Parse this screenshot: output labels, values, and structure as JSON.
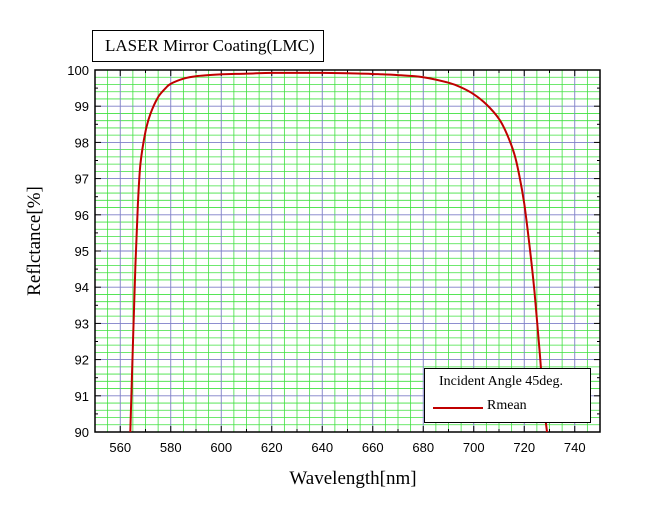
{
  "chart_data": {
    "type": "line",
    "title": "LASER Mirror Coating(LMC)",
    "xlabel": "Wavelength[nm]",
    "ylabel": "Reflctance[%]",
    "xlim": [
      550,
      750
    ],
    "ylim": [
      90,
      100
    ],
    "x_ticks": [
      560,
      580,
      600,
      620,
      640,
      660,
      680,
      700,
      720,
      740
    ],
    "y_ticks": [
      90,
      91,
      92,
      93,
      94,
      95,
      96,
      97,
      98,
      99,
      100
    ],
    "grid": true,
    "legend": {
      "title": "Incident Angle 45deg.",
      "position": "bottom-right"
    },
    "series": [
      {
        "name": "Rmean",
        "color": "#c00000",
        "x": [
          564,
          565,
          566,
          567,
          568,
          570,
          572,
          575,
          578,
          580,
          585,
          590,
          600,
          610,
          620,
          630,
          640,
          650,
          660,
          670,
          680,
          690,
          695,
          700,
          705,
          710,
          713,
          716,
          718,
          720,
          722,
          724,
          726,
          727,
          728,
          729
        ],
        "y": [
          90.0,
          92.4,
          94.6,
          96.3,
          97.4,
          98.3,
          98.8,
          99.25,
          99.5,
          99.62,
          99.76,
          99.83,
          99.88,
          99.9,
          99.92,
          99.92,
          99.92,
          99.91,
          99.89,
          99.86,
          99.8,
          99.65,
          99.52,
          99.33,
          99.05,
          98.65,
          98.25,
          97.7,
          97.1,
          96.3,
          95.2,
          93.9,
          92.3,
          91.4,
          90.6,
          90.0
        ]
      }
    ]
  }
}
